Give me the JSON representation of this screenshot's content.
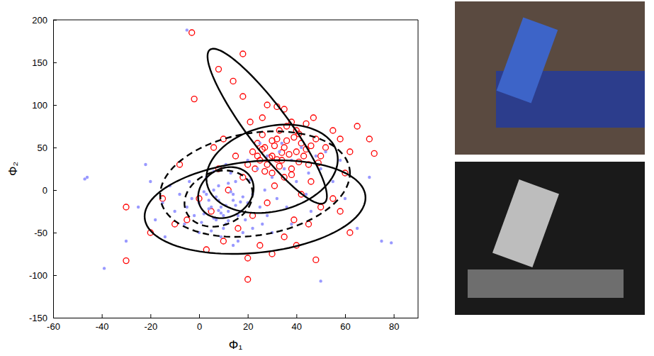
{
  "chart_data": {
    "type": "scatter",
    "xlabel": "Φ₁",
    "ylabel": "Φ₂",
    "xlim": [
      -60,
      90
    ],
    "ylim": [
      -150,
      200
    ],
    "xticks": [
      -60,
      -40,
      -20,
      0,
      20,
      40,
      60,
      80
    ],
    "yticks": [
      -150,
      -100,
      -50,
      0,
      50,
      100,
      150,
      200
    ],
    "series": [
      {
        "color": "#ff0000",
        "marker": "circle",
        "x": [
          30,
          35,
          28,
          40,
          32,
          25,
          38,
          42,
          33,
          27,
          45,
          36,
          22,
          48,
          30,
          40,
          35,
          50,
          26,
          44,
          20,
          38,
          52,
          31,
          46,
          24,
          55,
          18,
          42,
          34,
          58,
          15,
          28,
          50,
          12,
          60,
          22,
          39,
          8,
          55,
          5,
          62,
          16,
          45,
          0,
          35,
          25,
          -5,
          10,
          58,
          -10,
          20,
          30,
          48,
          20,
          -3,
          8,
          14,
          -2,
          18,
          -30,
          -30,
          70,
          72,
          65,
          -20,
          -15,
          62,
          3,
          40,
          28,
          32,
          18,
          26,
          35,
          21,
          47,
          10,
          -8,
          6,
          37,
          29,
          41,
          33,
          26,
          44,
          36,
          31,
          39,
          23,
          43,
          34,
          27,
          46,
          32,
          38,
          30,
          49,
          24,
          41
        ],
        "values": [
          40,
          50,
          30,
          45,
          60,
          35,
          25,
          55,
          70,
          50,
          30,
          75,
          45,
          60,
          20,
          70,
          15,
          40,
          65,
          78,
          30,
          80,
          50,
          5,
          10,
          55,
          70,
          15,
          -5,
          35,
          60,
          40,
          -15,
          -20,
          0,
          20,
          -30,
          -35,
          25,
          -10,
          -25,
          45,
          -45,
          -40,
          -10,
          -55,
          -65,
          -35,
          -60,
          -25,
          -40,
          -80,
          -75,
          -82,
          -105,
          185,
          142,
          128,
          107,
          110,
          -20,
          -83,
          60,
          43,
          75,
          -50,
          -10,
          -50,
          -70,
          -65,
          100,
          98,
          160,
          85,
          95,
          80,
          85,
          60,
          30,
          50,
          42,
          38,
          33,
          28,
          48,
          48,
          58,
          52,
          62,
          25,
          40,
          44,
          22,
          52,
          36,
          18,
          58,
          32,
          40,
          66
        ]
      },
      {
        "color": "#9999ff",
        "marker": "point",
        "x": [
          5,
          8,
          12,
          3,
          15,
          10,
          0,
          18,
          7,
          13,
          2,
          9,
          16,
          -3,
          20,
          6,
          11,
          14,
          4,
          1,
          17,
          8,
          -5,
          22,
          10,
          12,
          -2,
          19,
          5,
          25,
          15,
          3,
          -8,
          27,
          9,
          21,
          -6,
          28,
          13,
          0,
          30,
          24,
          -10,
          32,
          18,
          6,
          -12,
          35,
          16,
          -4,
          38,
          28,
          -15,
          40,
          22,
          33,
          11,
          42,
          26,
          45,
          -18,
          36,
          48,
          20,
          -20,
          50,
          30,
          14,
          44,
          -14,
          52,
          34,
          55,
          -22,
          46,
          58,
          25,
          -25,
          60,
          38,
          -46,
          -47,
          -39,
          -5,
          79,
          75,
          50,
          -30,
          65,
          70,
          7,
          11,
          4,
          9,
          14,
          6,
          17,
          2,
          12,
          8
        ],
        "values": [
          -20,
          -12,
          -25,
          -5,
          -18,
          -30,
          -15,
          -8,
          -35,
          -2,
          -28,
          -20,
          -30,
          -10,
          -15,
          0,
          -40,
          -12,
          -22,
          -38,
          -25,
          5,
          -20,
          -5,
          -45,
          8,
          -30,
          -35,
          -48,
          -20,
          10,
          15,
          -5,
          0,
          -55,
          12,
          -40,
          -30,
          20,
          -50,
          15,
          25,
          -25,
          -10,
          -50,
          22,
          5,
          25,
          -60,
          10,
          35,
          40,
          -15,
          10,
          -45,
          45,
          30,
          50,
          -40,
          20,
          -35,
          -20,
          40,
          35,
          10,
          25,
          -50,
          -65,
          -5,
          -55,
          45,
          55,
          10,
          30,
          -25,
          35,
          55,
          -20,
          -10,
          -40,
          15,
          13,
          -92,
          188,
          -62,
          -60,
          -107,
          -60,
          -45,
          15,
          -8,
          -18,
          -12,
          -27,
          -5,
          -33,
          -14,
          -2,
          -36,
          -24
        ]
      }
    ],
    "ellipses": [
      {
        "mean": [
          28,
          75
        ],
        "cov": [
          [
            602,
            -2016
          ],
          [
            -2016,
            8296
          ]
        ],
        "color": "#000000",
        "line_style": "solid"
      },
      {
        "mean": [
          23,
          -20
        ],
        "cov": [
          [
            2061,
            498
          ],
          [
            498,
            3028
          ]
        ],
        "color": "#000000",
        "line_style": "solid"
      },
      {
        "mean": [
          30,
          25
        ],
        "cov": [
          [
            729,
            300
          ],
          [
            300,
            2700
          ]
        ],
        "color": "#000000",
        "line_style": "solid"
      },
      {
        "mean": [
          11,
          -3
        ],
        "cov": [
          [
            130,
            60
          ],
          [
            60,
            900
          ]
        ],
        "color": "#000000",
        "line_style": "solid"
      },
      {
        "mean": [
          23,
          7
        ],
        "cov": [
          [
            1521,
            500
          ],
          [
            500,
            3844
          ]
        ],
        "color": "#000000",
        "line_style": "dashed"
      },
      {
        "mean": [
          8,
          -10
        ],
        "cov": [
          [
            196,
            80
          ],
          [
            80,
            1089
          ]
        ],
        "color": "#000000",
        "line_style": "dashed"
      }
    ]
  }
}
